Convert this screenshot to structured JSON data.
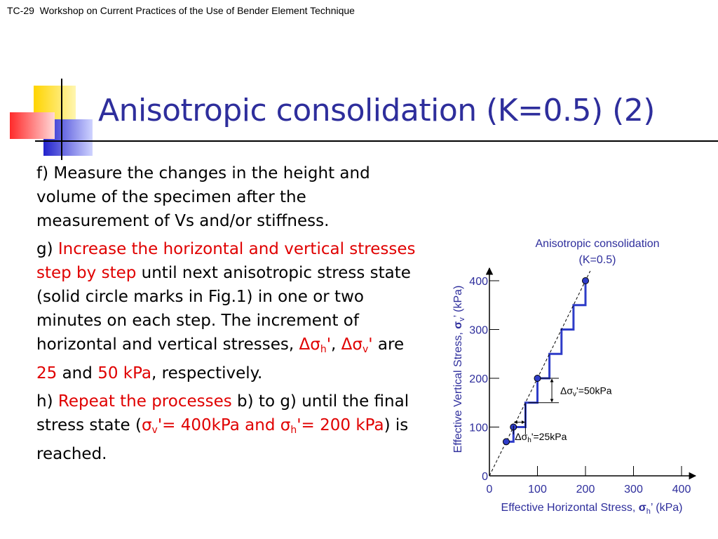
{
  "header": {
    "text": "TC-29  Workshop on Current Practices of the Use of Bender Element Technique"
  },
  "slide": {
    "title": "Anisotropic consolidation (K=0.5) (2)"
  },
  "content": {
    "f": "f) Measure the changes in the height and volume of the specimen after the measurement of Vs and/or stiffness.",
    "g_prefix": "g) ",
    "g_red1": "Increase the horizontal and vertical stresses step by step",
    "g_mid": " until next anisotropic stress state (solid circle marks in Fig.1) in one or two minutes on each step. The increment of horizontal and vertical stresses, ",
    "delta_sigma": "Δσ",
    "sub_h": "h",
    "sub_v": "v",
    "prime": "'",
    "comma": ", ",
    "are": " are ",
    "val_25": "25",
    "and": " and ",
    "val_50": "50 kPa",
    "respectively": ", respectively.",
    "h_prefix": "h) ",
    "h_red": "Repeat the processes",
    "h_mid": " b) to g) until the final stress state (",
    "sigma": "σ",
    "h_final_v": "'= 400kPa and ",
    "h_final_h": "'= 200 kPa",
    "h_end": ") is reached."
  },
  "chart_data": {
    "type": "line",
    "title": "Anisotropic consolidation",
    "subtitle": "(K=0.5)",
    "xlabel": "Effective Horizontal Stress, σh’ (kPa)",
    "ylabel": "Effective Vertical Stress, σv’ (kPa)",
    "xlim": [
      0,
      400
    ],
    "ylim": [
      0,
      400
    ],
    "xticks": [
      "0",
      "100",
      "200",
      "300",
      "400"
    ],
    "yticks": [
      "0",
      "100",
      "200",
      "300",
      "400"
    ],
    "x_label_prefix": "Effective Horizontal Stress, ",
    "x_label_suffix": "’ (kPa)",
    "y_label_prefix": "Effective Vertical Stress, ",
    "y_label_suffix": "’ (kPa)",
    "series": [
      {
        "type": "step",
        "color": "#2e3cc8",
        "x": [
          35,
          50,
          50,
          75,
          75,
          100,
          100,
          125,
          125,
          150,
          150,
          175,
          175,
          200,
          200
        ],
        "y": [
          70,
          70,
          100,
          100,
          150,
          150,
          200,
          200,
          250,
          250,
          300,
          300,
          350,
          350,
          400
        ]
      },
      {
        "type": "dashed-line",
        "color": "#000000",
        "x": [
          0,
          210
        ],
        "y": [
          0,
          420
        ]
      }
    ],
    "points": [
      {
        "x": 35,
        "y": 70
      },
      {
        "x": 50,
        "y": 100
      },
      {
        "x": 100,
        "y": 200
      },
      {
        "x": 200,
        "y": 400
      }
    ],
    "annotations": {
      "dv": {
        "text": "'=50kPa",
        "symbol": "Δσ",
        "sub": "v",
        "y_from": 150,
        "y_to": 200,
        "x": 130
      },
      "dh": {
        "text": "'=25kPa",
        "symbol": "Δσ",
        "sub": "h",
        "x_from": 50,
        "x_to": 75,
        "y": 110
      }
    },
    "accent_color": "#2e2e9c"
  }
}
